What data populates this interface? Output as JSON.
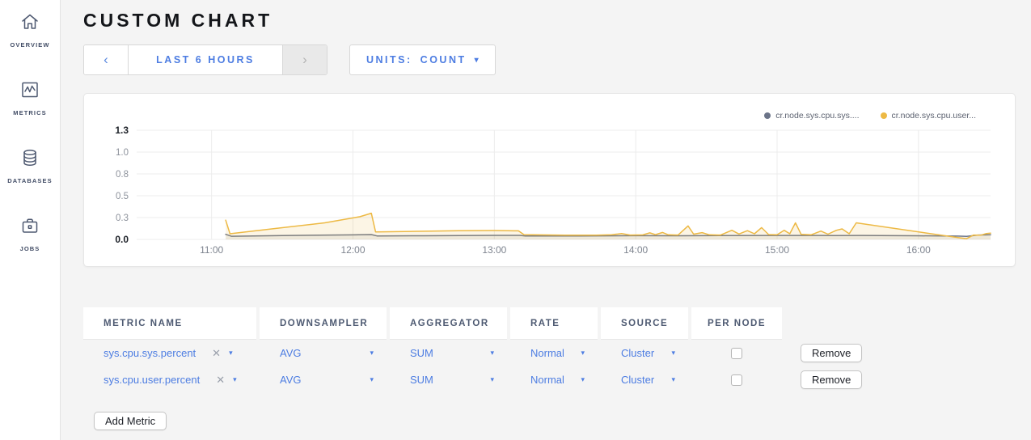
{
  "sidebar": {
    "items": [
      {
        "label": "OVERVIEW",
        "icon": "home-icon"
      },
      {
        "label": "METRICS",
        "icon": "metrics-icon"
      },
      {
        "label": "DATABASES",
        "icon": "databases-icon"
      },
      {
        "label": "JOBS",
        "icon": "jobs-icon"
      }
    ]
  },
  "header": {
    "title": "CUSTOM CHART"
  },
  "controls": {
    "time_range": {
      "prev": "‹",
      "label": "LAST 6 HOURS",
      "next": "›"
    },
    "units": {
      "label": "UNITS:",
      "value": "COUNT",
      "caret": "▾"
    }
  },
  "icons": {
    "caret": "▾",
    "clear": "✕"
  },
  "chart_data": {
    "type": "line",
    "title": "",
    "xlabel": "",
    "ylabel": "",
    "grid": true,
    "legend_position": "top-right",
    "x_range": [
      10.47,
      16.51
    ],
    "y_range": [
      0,
      1.25
    ],
    "x_ticks": [
      {
        "t": 11,
        "label": "11:00"
      },
      {
        "t": 12,
        "label": "12:00"
      },
      {
        "t": 13,
        "label": "13:00"
      },
      {
        "t": 14,
        "label": "14:00"
      },
      {
        "t": 15,
        "label": "15:00"
      },
      {
        "t": 16,
        "label": "16:00"
      }
    ],
    "y_ticks": [
      {
        "v": 0,
        "label": "0.0",
        "bold": true
      },
      {
        "v": 0.25,
        "label": "0.3",
        "bold": false
      },
      {
        "v": 0.5,
        "label": "0.5",
        "bold": false
      },
      {
        "v": 0.75,
        "label": "0.8",
        "bold": false
      },
      {
        "v": 1.0,
        "label": "1.0",
        "bold": false
      },
      {
        "v": 1.25,
        "label": "1.3",
        "bold": true
      }
    ],
    "series": [
      {
        "name": "cr.node.sys.cpu.sys....",
        "color": "#6b7488",
        "fill": "rgba(107,116,136,0.10)",
        "points": [
          [
            11.1,
            0.058
          ],
          [
            11.14,
            0.036
          ],
          [
            11.5,
            0.044
          ],
          [
            12.0,
            0.052
          ],
          [
            12.13,
            0.056
          ],
          [
            12.17,
            0.04
          ],
          [
            12.5,
            0.042
          ],
          [
            13.0,
            0.046
          ],
          [
            13.18,
            0.046
          ],
          [
            13.22,
            0.04
          ],
          [
            13.6,
            0.04
          ],
          [
            14.0,
            0.043
          ],
          [
            14.3,
            0.042
          ],
          [
            14.6,
            0.044
          ],
          [
            15.0,
            0.045
          ],
          [
            15.4,
            0.044
          ],
          [
            15.6,
            0.045
          ],
          [
            16.0,
            0.042
          ],
          [
            16.28,
            0.038
          ],
          [
            16.34,
            0.035
          ],
          [
            16.42,
            0.05
          ],
          [
            16.51,
            0.053
          ]
        ]
      },
      {
        "name": "cr.node.sys.cpu.user...",
        "color": "#edb944",
        "fill": "rgba(237,185,68,0.14)",
        "points": [
          [
            11.1,
            0.22
          ],
          [
            11.13,
            0.065
          ],
          [
            11.45,
            0.125
          ],
          [
            11.8,
            0.19
          ],
          [
            12.05,
            0.26
          ],
          [
            12.13,
            0.3
          ],
          [
            12.16,
            0.085
          ],
          [
            12.45,
            0.093
          ],
          [
            12.75,
            0.1
          ],
          [
            13.0,
            0.102
          ],
          [
            13.17,
            0.098
          ],
          [
            13.21,
            0.055
          ],
          [
            13.5,
            0.048
          ],
          [
            13.72,
            0.048
          ],
          [
            13.83,
            0.053
          ],
          [
            13.9,
            0.068
          ],
          [
            13.96,
            0.05
          ],
          [
            14.05,
            0.052
          ],
          [
            14.1,
            0.075
          ],
          [
            14.14,
            0.055
          ],
          [
            14.19,
            0.08
          ],
          [
            14.23,
            0.053
          ],
          [
            14.3,
            0.05
          ],
          [
            14.37,
            0.155
          ],
          [
            14.41,
            0.06
          ],
          [
            14.47,
            0.078
          ],
          [
            14.52,
            0.053
          ],
          [
            14.6,
            0.05
          ],
          [
            14.68,
            0.105
          ],
          [
            14.73,
            0.062
          ],
          [
            14.79,
            0.1
          ],
          [
            14.84,
            0.065
          ],
          [
            14.89,
            0.135
          ],
          [
            14.94,
            0.056
          ],
          [
            15.0,
            0.053
          ],
          [
            15.05,
            0.105
          ],
          [
            15.09,
            0.065
          ],
          [
            15.13,
            0.19
          ],
          [
            15.17,
            0.058
          ],
          [
            15.24,
            0.053
          ],
          [
            15.31,
            0.095
          ],
          [
            15.36,
            0.06
          ],
          [
            15.42,
            0.105
          ],
          [
            15.46,
            0.12
          ],
          [
            15.51,
            0.065
          ],
          [
            15.56,
            0.19
          ],
          [
            16.28,
            0.02
          ],
          [
            16.34,
            0.008
          ],
          [
            16.39,
            0.05
          ],
          [
            16.44,
            0.048
          ],
          [
            16.48,
            0.068
          ],
          [
            16.51,
            0.072
          ]
        ]
      }
    ]
  },
  "table": {
    "headers": [
      "METRIC NAME",
      "DOWNSAMPLER",
      "AGGREGATOR",
      "RATE",
      "SOURCE",
      "PER NODE"
    ],
    "rows": [
      {
        "metric": "sys.cpu.sys.percent",
        "downsampler": "AVG",
        "aggregator": "SUM",
        "rate": "Normal",
        "source": "Cluster",
        "per_node": false,
        "remove_label": "Remove"
      },
      {
        "metric": "sys.cpu.user.percent",
        "downsampler": "AVG",
        "aggregator": "SUM",
        "rate": "Normal",
        "source": "Cluster",
        "per_node": false,
        "remove_label": "Remove"
      }
    ],
    "add_button": "Add Metric"
  },
  "colors": {
    "accent_blue": "#4d7de2",
    "grid_line": "#ececec",
    "disabled_chevron": "#b3b3b3",
    "page_background": "#f4f4f4"
  }
}
